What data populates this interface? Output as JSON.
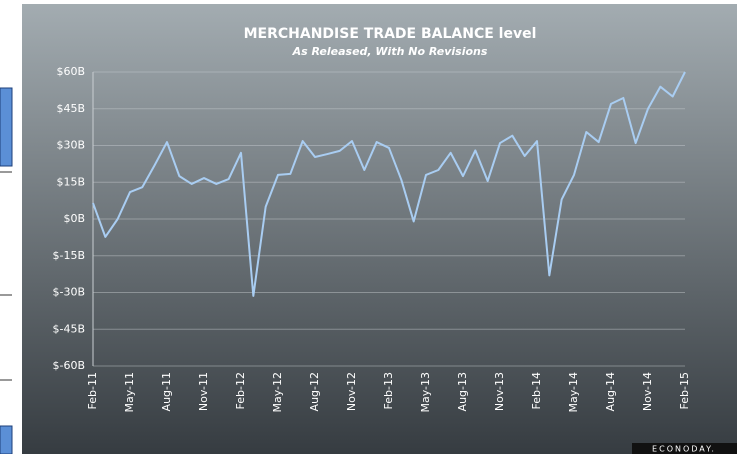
{
  "chart_data": {
    "type": "line",
    "title": "MERCHANDISE TRADE BALANCE level",
    "subtitle": "As Released, With No Revisions",
    "brand": "ECONODAY.",
    "categories": [
      "Feb-11",
      null,
      null,
      "May-11",
      null,
      null,
      "Aug-11",
      null,
      null,
      "Nov-11",
      null,
      null,
      "Feb-12",
      null,
      null,
      "May-12",
      null,
      null,
      "Aug-12",
      null,
      null,
      "Nov-12",
      null,
      null,
      "Feb-13",
      null,
      null,
      "May-13",
      null,
      null,
      "Aug-13",
      null,
      null,
      "Nov-13",
      null,
      null,
      "Feb-14",
      null,
      null,
      "May-14",
      null,
      null,
      "Aug-14",
      null,
      null,
      "Nov-14",
      null,
      null,
      "Feb-15"
    ],
    "series": [
      {
        "name": "Merchandise trade balance",
        "color": "#a9cdf2",
        "values": [
          6.5,
          -7.3,
          0,
          11,
          13,
          22,
          31.4,
          17.5,
          14.3,
          16.7,
          14.3,
          16.3,
          27,
          -31.4,
          5,
          18,
          18.4,
          31.8,
          25.3,
          26.5,
          27.8,
          31.8,
          20,
          31.4,
          29,
          16,
          -1,
          18,
          20,
          27,
          17.5,
          28,
          15.5,
          31,
          34,
          25.7,
          31.8,
          -23,
          8,
          18,
          35.5,
          31.4,
          47,
          49.4,
          31,
          45,
          54,
          50,
          60
        ]
      }
    ],
    "ylim": [
      -60,
      60
    ],
    "yticks": [
      {
        "value": -60,
        "label": "$-60B"
      },
      {
        "value": -45,
        "label": "$-45B"
      },
      {
        "value": -30,
        "label": "$-30B"
      },
      {
        "value": -15,
        "label": "$-15B"
      },
      {
        "value": 0,
        "label": "$0B"
      },
      {
        "value": 15,
        "label": "$15B"
      },
      {
        "value": 30,
        "label": "$30B"
      },
      {
        "value": 45,
        "label": "$45B"
      },
      {
        "value": 60,
        "label": "$60B"
      }
    ],
    "grid": true
  }
}
